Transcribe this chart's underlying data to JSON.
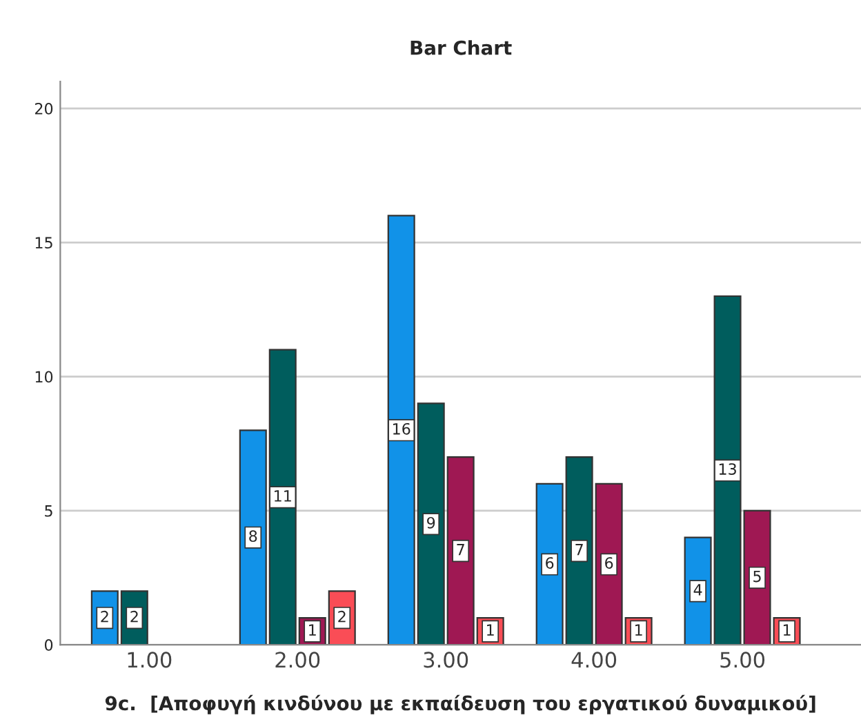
{
  "chart_data": {
    "type": "bar",
    "title": "Bar Chart",
    "xlabel": "9c.  [Αποφυγή κινδύνου με εκπαίδευση του εργατικού δυναμικού]",
    "categories": [
      "1.00",
      "2.00",
      "3.00",
      "4.00",
      "5.00"
    ],
    "series": [
      {
        "color": "#1192e8",
        "values": [
          2,
          8,
          16,
          6,
          4
        ]
      },
      {
        "color": "#005d5d",
        "values": [
          2,
          11,
          9,
          7,
          13
        ]
      },
      {
        "color": "#9f1853",
        "values": [
          null,
          1,
          7,
          6,
          5
        ]
      },
      {
        "color": "#fa4d56",
        "values": [
          null,
          2,
          1,
          1,
          1
        ]
      }
    ],
    "ylim": [
      0,
      21
    ],
    "yticks": [
      0,
      5,
      10,
      15,
      20
    ],
    "grid": "y",
    "data_labels": true
  }
}
